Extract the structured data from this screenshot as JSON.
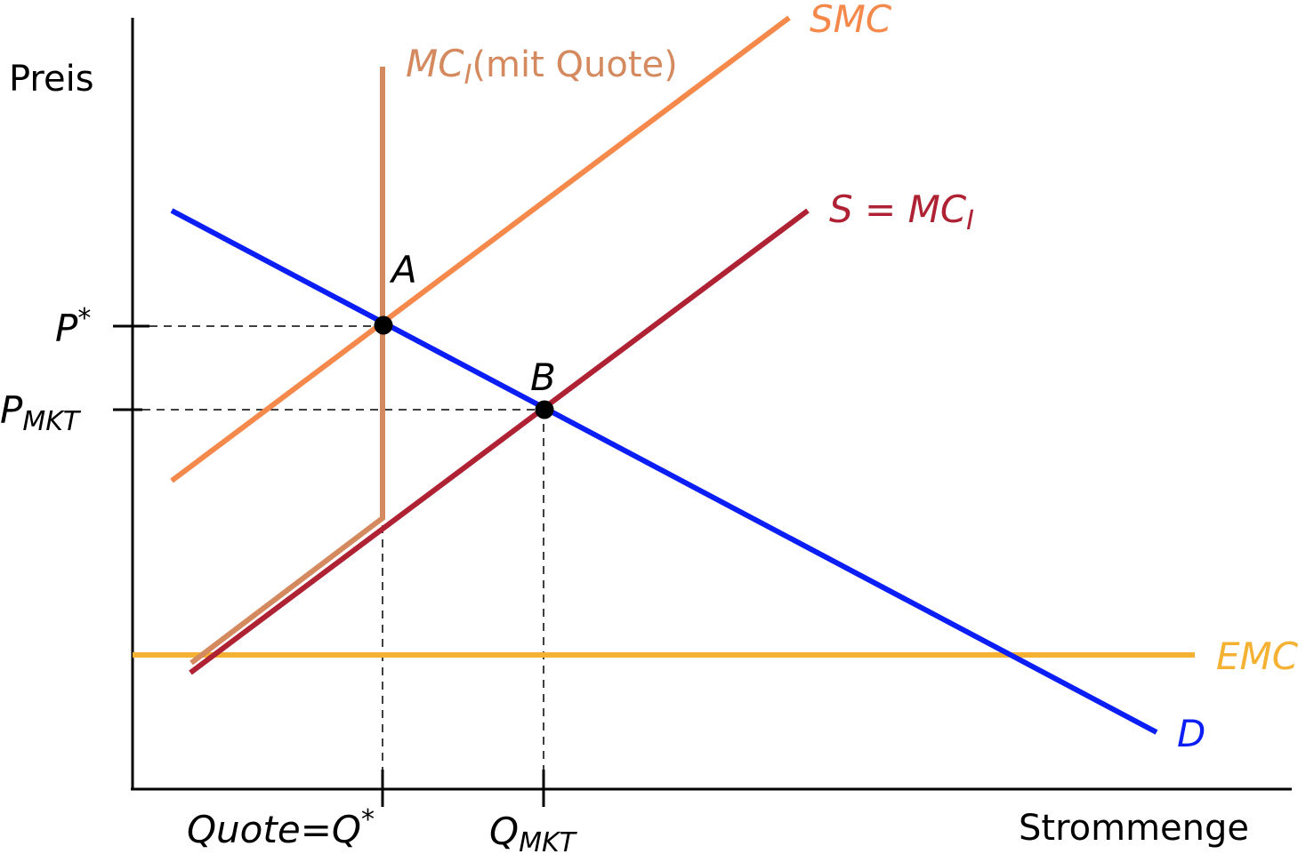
{
  "axes": {
    "y_label": "Preis",
    "x_label": "Strommenge"
  },
  "prices": {
    "p_star": {
      "base": "P",
      "sup": "*"
    },
    "p_mkt": {
      "base": "P",
      "sub": "MKT"
    }
  },
  "quantities": {
    "quote": {
      "left": "Quote",
      "eq": "=",
      "base": "Q",
      "sup": "*"
    },
    "q_mkt": {
      "base": "Q",
      "sub": "MKT"
    }
  },
  "curves": {
    "smc": {
      "label": "SMC",
      "color": "#f5894b"
    },
    "mci_quote": {
      "base": "MC",
      "sub": "I",
      "paren": "(mit Quote)",
      "color": "#d48a5e"
    },
    "s_mci": {
      "left": "S",
      "eq": " = ",
      "base": "MC",
      "sub": "I",
      "color": "#ae2234"
    },
    "emc": {
      "label": "EMC",
      "color": "#f4b132"
    },
    "demand": {
      "label": "D",
      "color": "#0b1ef5"
    }
  },
  "points": {
    "a": {
      "label": "A"
    },
    "b": {
      "label": "B"
    }
  }
}
